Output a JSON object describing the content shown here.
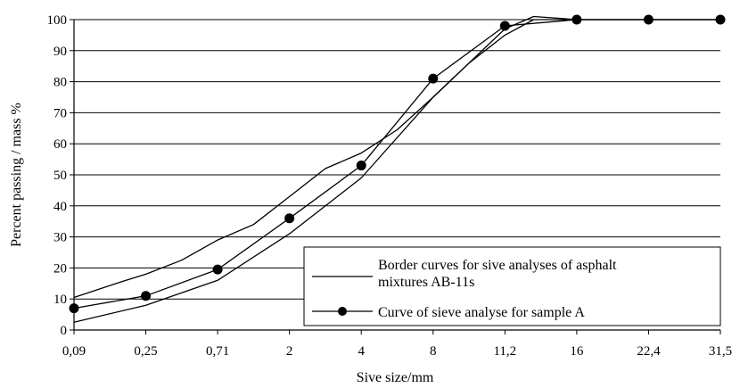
{
  "chart_data": {
    "type": "line",
    "title": "",
    "xlabel": "Sive size/mm",
    "ylabel": "Percent passing / mass %",
    "categories": [
      "0,09",
      "0,25",
      "0,71",
      "2",
      "4",
      "8",
      "11,2",
      "16",
      "22,4",
      "31,5"
    ],
    "ylim": [
      0,
      100
    ],
    "yticks": [
      0,
      10,
      20,
      30,
      40,
      50,
      60,
      70,
      80,
      90,
      100
    ],
    "grid": "horizontal",
    "legend_position": "bottom-right",
    "series": [
      {
        "name": "Border curves for sive analyses of asphalt mixtures AB-11s",
        "role": "upper-border",
        "marker": "none",
        "x": [
          0,
          0.65,
          1,
          1.5,
          2,
          2.5,
          3,
          3.5,
          4,
          4.5,
          5,
          5.5,
          6,
          6.4,
          7,
          8,
          9
        ],
        "y": [
          10.5,
          15.5,
          18,
          22.5,
          29,
          34,
          43,
          52,
          57,
          64.5,
          75,
          86,
          95,
          100,
          100,
          100,
          100
        ]
      },
      {
        "name": "",
        "role": "lower-border",
        "marker": "none",
        "x": [
          0,
          1,
          2,
          3,
          4,
          5,
          6,
          6.4,
          7,
          8,
          9
        ],
        "y": [
          2.5,
          8,
          16,
          31,
          49,
          75,
          97,
          101,
          100,
          100,
          100
        ]
      },
      {
        "name": "Curve of sieve analyse for sample A",
        "role": "sample",
        "marker": "circle",
        "x": [
          0,
          1,
          2,
          3,
          4,
          5,
          6,
          7,
          8,
          9
        ],
        "y": [
          7,
          11,
          19.5,
          36,
          53,
          81,
          98,
          100,
          100,
          100
        ]
      }
    ]
  }
}
